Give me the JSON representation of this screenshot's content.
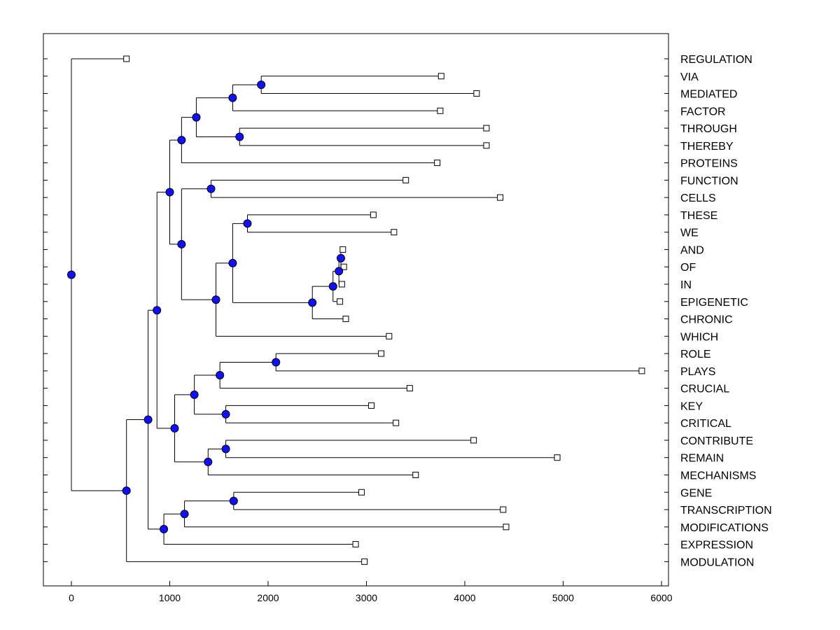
{
  "chart_data": {
    "type": "dendrogram",
    "title": "",
    "xlabel": "",
    "ylabel": "",
    "xlim": [
      -300,
      6100
    ],
    "xticks": [
      0,
      1000,
      2000,
      3000,
      4000,
      5000,
      6000
    ],
    "grid": false,
    "leaves": [
      {
        "label": "REGULATION",
        "value": 560
      },
      {
        "label": "VIA",
        "value": 3760
      },
      {
        "label": "MEDIATED",
        "value": 4120
      },
      {
        "label": "FACTOR",
        "value": 3750
      },
      {
        "label": "THROUGH",
        "value": 4220
      },
      {
        "label": "THEREBY",
        "value": 4220
      },
      {
        "label": "PROTEINS",
        "value": 3720
      },
      {
        "label": "FUNCTION",
        "value": 3400
      },
      {
        "label": "CELLS",
        "value": 4360
      },
      {
        "label": "THESE",
        "value": 3070
      },
      {
        "label": "WE",
        "value": 3280
      },
      {
        "label": "AND",
        "value": 2760
      },
      {
        "label": "OF",
        "value": 2770
      },
      {
        "label": "IN",
        "value": 2750
      },
      {
        "label": "EPIGENETIC",
        "value": 2730
      },
      {
        "label": "CHRONIC",
        "value": 2790
      },
      {
        "label": "WHICH",
        "value": 3230
      },
      {
        "label": "ROLE",
        "value": 3150
      },
      {
        "label": "PLAYS",
        "value": 5800
      },
      {
        "label": "CRUCIAL",
        "value": 3440
      },
      {
        "label": "KEY",
        "value": 3050
      },
      {
        "label": "CRITICAL",
        "value": 3300
      },
      {
        "label": "CONTRIBUTE",
        "value": 4090
      },
      {
        "label": "REMAIN",
        "value": 4940
      },
      {
        "label": "MECHANISMS",
        "value": 3500
      },
      {
        "label": "GENE",
        "value": 2950
      },
      {
        "label": "TRANSCRIPTION",
        "value": 4390
      },
      {
        "label": "MODIFICATIONS",
        "value": 4420
      },
      {
        "label": "EXPRESSION",
        "value": 2890
      },
      {
        "label": "MODULATION",
        "value": 2980
      }
    ],
    "nodes": [
      {
        "id": "n1",
        "value": 1930,
        "children": [
          "VIA",
          "MEDIATED"
        ]
      },
      {
        "id": "n2",
        "value": 1640,
        "children": [
          "n1",
          "FACTOR"
        ]
      },
      {
        "id": "n3",
        "value": 1710,
        "children": [
          "THROUGH",
          "THEREBY"
        ]
      },
      {
        "id": "n4",
        "value": 1270,
        "children": [
          "n2",
          "n3"
        ]
      },
      {
        "id": "n5",
        "value": 1120,
        "children": [
          "n4",
          "PROTEINS"
        ]
      },
      {
        "id": "n6",
        "value": 1420,
        "children": [
          "FUNCTION",
          "CELLS"
        ]
      },
      {
        "id": "n7",
        "value": 1790,
        "children": [
          "THESE",
          "WE"
        ]
      },
      {
        "id": "n8",
        "value": 2740,
        "children": [
          "AND",
          "OF"
        ]
      },
      {
        "id": "n9",
        "value": 2720,
        "children": [
          "n8",
          "IN"
        ]
      },
      {
        "id": "n10",
        "value": 2660,
        "children": [
          "n9",
          "EPIGENETIC"
        ]
      },
      {
        "id": "n11",
        "value": 2450,
        "children": [
          "n10",
          "CHRONIC"
        ]
      },
      {
        "id": "n12",
        "value": 1640,
        "children": [
          "n7",
          "n11"
        ]
      },
      {
        "id": "n13",
        "value": 1470,
        "children": [
          "n12",
          "WHICH"
        ]
      },
      {
        "id": "n14",
        "value": 1120,
        "children": [
          "n6",
          "n13"
        ]
      },
      {
        "id": "n15",
        "value": 1000,
        "children": [
          "n5",
          "n14"
        ]
      },
      {
        "id": "n16",
        "value": 2080,
        "children": [
          "ROLE",
          "PLAYS"
        ]
      },
      {
        "id": "n17",
        "value": 1510,
        "children": [
          "n16",
          "CRUCIAL"
        ]
      },
      {
        "id": "n18",
        "value": 1570,
        "children": [
          "KEY",
          "CRITICAL"
        ]
      },
      {
        "id": "n19",
        "value": 1250,
        "children": [
          "n17",
          "n18"
        ]
      },
      {
        "id": "n20",
        "value": 1570,
        "children": [
          "CONTRIBUTE",
          "REMAIN"
        ]
      },
      {
        "id": "n21",
        "value": 1390,
        "children": [
          "n20",
          "MECHANISMS"
        ]
      },
      {
        "id": "n22",
        "value": 1050,
        "children": [
          "n19",
          "n21"
        ]
      },
      {
        "id": "n23",
        "value": 870,
        "children": [
          "n15",
          "n22"
        ]
      },
      {
        "id": "n24",
        "value": 1650,
        "children": [
          "GENE",
          "TRANSCRIPTION"
        ]
      },
      {
        "id": "n25",
        "value": 1150,
        "children": [
          "n24",
          "MODIFICATIONS"
        ]
      },
      {
        "id": "n26",
        "value": 940,
        "children": [
          "n25",
          "EXPRESSION"
        ]
      },
      {
        "id": "n27",
        "value": 780,
        "children": [
          "n23",
          "n26"
        ]
      },
      {
        "id": "n28",
        "value": 560,
        "children": [
          "n27",
          "MODULATION"
        ]
      },
      {
        "id": "root",
        "value": 0,
        "children": [
          "REGULATION",
          "n28"
        ]
      }
    ]
  }
}
